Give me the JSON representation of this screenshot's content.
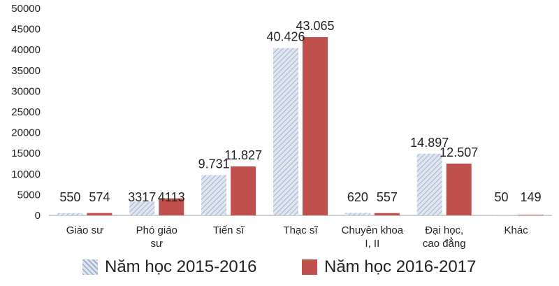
{
  "chart_data": {
    "type": "bar",
    "categories": [
      "Giáo sư",
      "Phó giáo sư",
      "Tiến sĩ",
      "Thạc sĩ",
      "Chuyên khoa I, II",
      "Đại học, cao đẳng",
      "Khác"
    ],
    "category_lines": [
      [
        "Giáo sư"
      ],
      [
        "Phó giáo",
        "sư"
      ],
      [
        "Tiến sĩ"
      ],
      [
        "Thạc sĩ"
      ],
      [
        "Chuyên khoa",
        "I, II"
      ],
      [
        "Đại học,",
        "cao đẳng"
      ],
      [
        "Khác"
      ]
    ],
    "series": [
      {
        "name": "Năm học 2015-2016",
        "values": [
          550,
          3317,
          9731,
          40426,
          620,
          14897,
          50
        ],
        "labels": [
          "550",
          "3317",
          "9.731",
          "40.426",
          "620",
          "14.897",
          "50"
        ],
        "color": "#c9d3e3",
        "pattern": "diagonal-hatch"
      },
      {
        "name": "Năm học 2016-2017",
        "values": [
          574,
          4113,
          11827,
          43065,
          557,
          12507,
          149
        ],
        "labels": [
          "574",
          "4113",
          "11.827",
          "43.065",
          "557",
          "12.507",
          "149"
        ],
        "color": "#c0504d",
        "pattern": "solid"
      }
    ],
    "yticks": [
      "0",
      "5000",
      "10000",
      "15000",
      "20000",
      "25000",
      "30000",
      "35000",
      "40000",
      "45000",
      "50000"
    ],
    "ylim": [
      0,
      50000
    ],
    "grid": false,
    "legend_position": "bottom",
    "title": "",
    "xlabel": "",
    "ylabel": ""
  }
}
